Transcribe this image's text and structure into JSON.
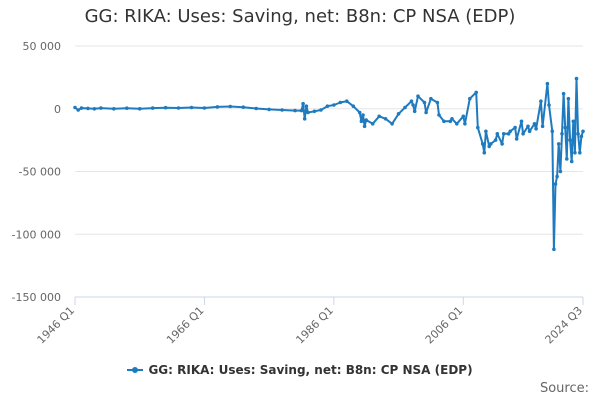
{
  "chart_data": {
    "type": "line",
    "title": "GG: RIKA: Uses: Saving, net: B8n: CP NSA (EDP)",
    "ylim": [
      -150000,
      50000
    ],
    "yticks": [
      {
        "value": 50000,
        "label": "50 000"
      },
      {
        "value": 0,
        "label": "0"
      },
      {
        "value": -50000,
        "label": "-50 000"
      },
      {
        "value": -100000,
        "label": "-100 000"
      },
      {
        "value": -150000,
        "label": "-150 000"
      }
    ],
    "xrange": [
      1946.0,
      2024.5
    ],
    "xticks": [
      {
        "value": 1946.0,
        "label": "1946 Q1"
      },
      {
        "value": 1966.0,
        "label": "1966 Q1"
      },
      {
        "value": 1986.0,
        "label": "1986 Q1"
      },
      {
        "value": 2006.0,
        "label": "2006 Q1"
      },
      {
        "value": 2024.5,
        "label": "2024 Q3"
      }
    ],
    "grid": true,
    "legend_position": "bottom",
    "color": "#1f7bbf",
    "series": [
      {
        "name": "GG: RIKA: Uses: Saving, net: B8n: CP NSA (EDP)",
        "x": [
          1946.0,
          1946.5,
          1947.0,
          1948.0,
          1949.0,
          1950.0,
          1952.0,
          1954.0,
          1956.0,
          1958.0,
          1960.0,
          1962.0,
          1964.0,
          1966.0,
          1968.0,
          1970.0,
          1972.0,
          1974.0,
          1976.0,
          1978.0,
          1980.0,
          1981.0,
          1981.25,
          1981.5,
          1981.75,
          1982.0,
          1983.0,
          1984.0,
          1985.0,
          1986.0,
          1987.0,
          1988.0,
          1989.0,
          1990.0,
          1990.25,
          1990.5,
          1990.75,
          1991.0,
          1992.0,
          1993.0,
          1994.0,
          1995.0,
          1996.0,
          1997.0,
          1998.0,
          1998.25,
          1998.5,
          1999.0,
          2000.0,
          2000.25,
          2001.0,
          2002.0,
          2002.25,
          2003.0,
          2004.0,
          2004.25,
          2005.0,
          2006.0,
          2006.25,
          2007.0,
          2008.0,
          2008.25,
          2009.0,
          2009.25,
          2009.5,
          2010.0,
          2010.25,
          2011.0,
          2011.25,
          2012.0,
          2012.25,
          2013.0,
          2013.25,
          2014.0,
          2014.25,
          2015.0,
          2015.25,
          2016.0,
          2016.25,
          2017.0,
          2017.25,
          2018.0,
          2018.25,
          2019.0,
          2019.25,
          2019.75,
          2020.0,
          2020.25,
          2020.5,
          2020.75,
          2021.0,
          2021.25,
          2021.5,
          2021.75,
          2022.0,
          2022.25,
          2022.5,
          2022.75,
          2023.0,
          2023.25,
          2023.5,
          2023.75,
          2024.0,
          2024.25,
          2024.5
        ],
        "values": [
          1000,
          -1000,
          500,
          300,
          0,
          500,
          0,
          400,
          0,
          500,
          800,
          600,
          1000,
          600,
          1500,
          1800,
          1200,
          200,
          -500,
          -1000,
          -1500,
          -1500,
          4000,
          -8000,
          2000,
          -3000,
          -2000,
          -1000,
          2000,
          3000,
          5000,
          6000,
          2000,
          -3000,
          -10000,
          -5000,
          -14000,
          -9000,
          -12000,
          -6000,
          -8000,
          -12000,
          -4000,
          1000,
          6000,
          3000,
          -2000,
          10000,
          5000,
          -3000,
          8000,
          5000,
          -5000,
          -10000,
          -10000,
          -8000,
          -12000,
          -6000,
          -12000,
          8000,
          13000,
          -15000,
          -28000,
          -35000,
          -18000,
          -30000,
          -28000,
          -25000,
          -20000,
          -28000,
          -20000,
          -20000,
          -18000,
          -15000,
          -24000,
          -10000,
          -20000,
          -14000,
          -18000,
          -12000,
          -16000,
          6000,
          -14000,
          20000,
          3000,
          -18000,
          -112000,
          -60000,
          -54000,
          -28000,
          -50000,
          -20000,
          12000,
          -15000,
          -40000,
          8000,
          -25000,
          -42000,
          -10000,
          -35000,
          24000,
          -20000,
          -35000,
          -22000,
          -18000
        ]
      }
    ]
  },
  "source_label": "Source:"
}
